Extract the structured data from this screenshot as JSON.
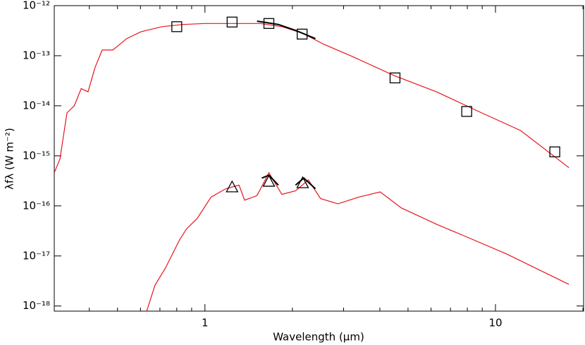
{
  "chart_data": {
    "type": "line",
    "xlabel": "Wavelength (μm)",
    "ylabel": "λfλ (W m⁻²)",
    "xscale": "log",
    "yscale": "log",
    "xlim": [
      0.303,
      20.1
    ],
    "ylim": [
      7.9e-19,
      1e-12
    ],
    "xticks": [
      1,
      10
    ],
    "xminorticks": [
      0.4,
      0.5,
      0.6,
      0.7,
      0.8,
      0.9,
      2,
      3,
      4,
      5,
      6,
      7,
      8,
      9,
      20
    ],
    "yticks": [
      {
        "value": 1e-12,
        "label": "10⁻¹²"
      },
      {
        "value": 1e-13,
        "label": "10⁻¹³"
      },
      {
        "value": 1e-14,
        "label": "10⁻¹⁴"
      },
      {
        "value": 1e-15,
        "label": "10⁻¹⁵"
      },
      {
        "value": 1e-16,
        "label": "10⁻¹⁶"
      },
      {
        "value": 1e-17,
        "label": "10⁻¹⁷"
      },
      {
        "value": 1e-18,
        "label": "10⁻¹⁸"
      }
    ],
    "series": [
      {
        "color": "#e8141e",
        "marker": "none",
        "x": [
          0.303,
          0.317,
          0.335,
          0.355,
          0.375,
          0.396,
          0.419,
          0.443,
          0.482,
          0.538,
          0.602,
          0.711,
          0.841,
          1,
          1.24,
          1.55,
          1.84,
          2.17,
          2.56,
          3.21,
          4.48,
          6.26,
          8.75,
          12.2,
          17.9
        ],
        "values": [
          4.6e-16,
          8.7e-16,
          7.2e-15,
          1e-14,
          2.2e-14,
          1.9e-14,
          5.9e-14,
          1.3e-13,
          1.3e-13,
          2.2e-13,
          3e-13,
          3.8e-13,
          4.2e-13,
          4.4e-13,
          4.4e-13,
          4.4e-13,
          3.8e-13,
          2.8e-13,
          1.7e-13,
          9.7e-14,
          4e-14,
          1.9e-14,
          7.7e-15,
          3.2e-15,
          5.8e-16
        ]
      },
      {
        "color": "#e8141e",
        "marker": "none",
        "x": [
          0.63,
          0.673,
          0.732,
          0.818,
          0.865,
          0.94,
          1.05,
          1.18,
          1.31,
          1.37,
          1.51,
          1.66,
          1.84,
          2.05,
          2.27,
          2.5,
          2.87,
          3.39,
          4.01,
          4.74,
          6.26,
          7.82,
          10.9,
          17.9
        ],
        "values": [
          7.9e-19,
          2.6e-18,
          5.8e-18,
          2.1e-17,
          3.5e-17,
          5.6e-17,
          1.5e-16,
          2.2e-16,
          2.6e-16,
          1.3e-16,
          1.6e-16,
          4.6e-16,
          1.7e-16,
          2e-16,
          3.3e-16,
          1.4e-16,
          1.1e-16,
          1.5e-16,
          1.9e-16,
          9.1e-17,
          4.3e-17,
          2.5e-17,
          1.1e-17,
          2.7e-18
        ]
      },
      {
        "color": "#000000",
        "marker": "none",
        "x": [
          1.51,
          1.79,
          2.05,
          2.4
        ],
        "values": [
          4.9e-13,
          4.2e-13,
          3.2e-13,
          2.2e-13
        ]
      },
      {
        "color": "#000000",
        "marker": "none",
        "x": [
          1.57,
          1.66,
          1.79,
          1.9,
          2.05,
          2.19,
          2.4
        ],
        "values": [
          3.6e-16,
          4.1e-16,
          2.6e-16,
          null,
          2.6e-16,
          3.6e-16,
          2.2e-16
        ]
      },
      {
        "color": "#000000",
        "marker": "square",
        "x": [
          0.8,
          1.24,
          1.66,
          2.16,
          4.51,
          7.96,
          16.0
        ],
        "values": [
          3.8e-13,
          4.7e-13,
          4.4e-13,
          2.7e-13,
          3.6e-14,
          7.7e-15,
          1.2e-15
        ]
      },
      {
        "color": "#000000",
        "marker": "triangle",
        "x": [
          1.24,
          1.66,
          2.17
        ],
        "values": [
          2.4e-16,
          3.1e-16,
          2.9e-16
        ]
      }
    ]
  }
}
